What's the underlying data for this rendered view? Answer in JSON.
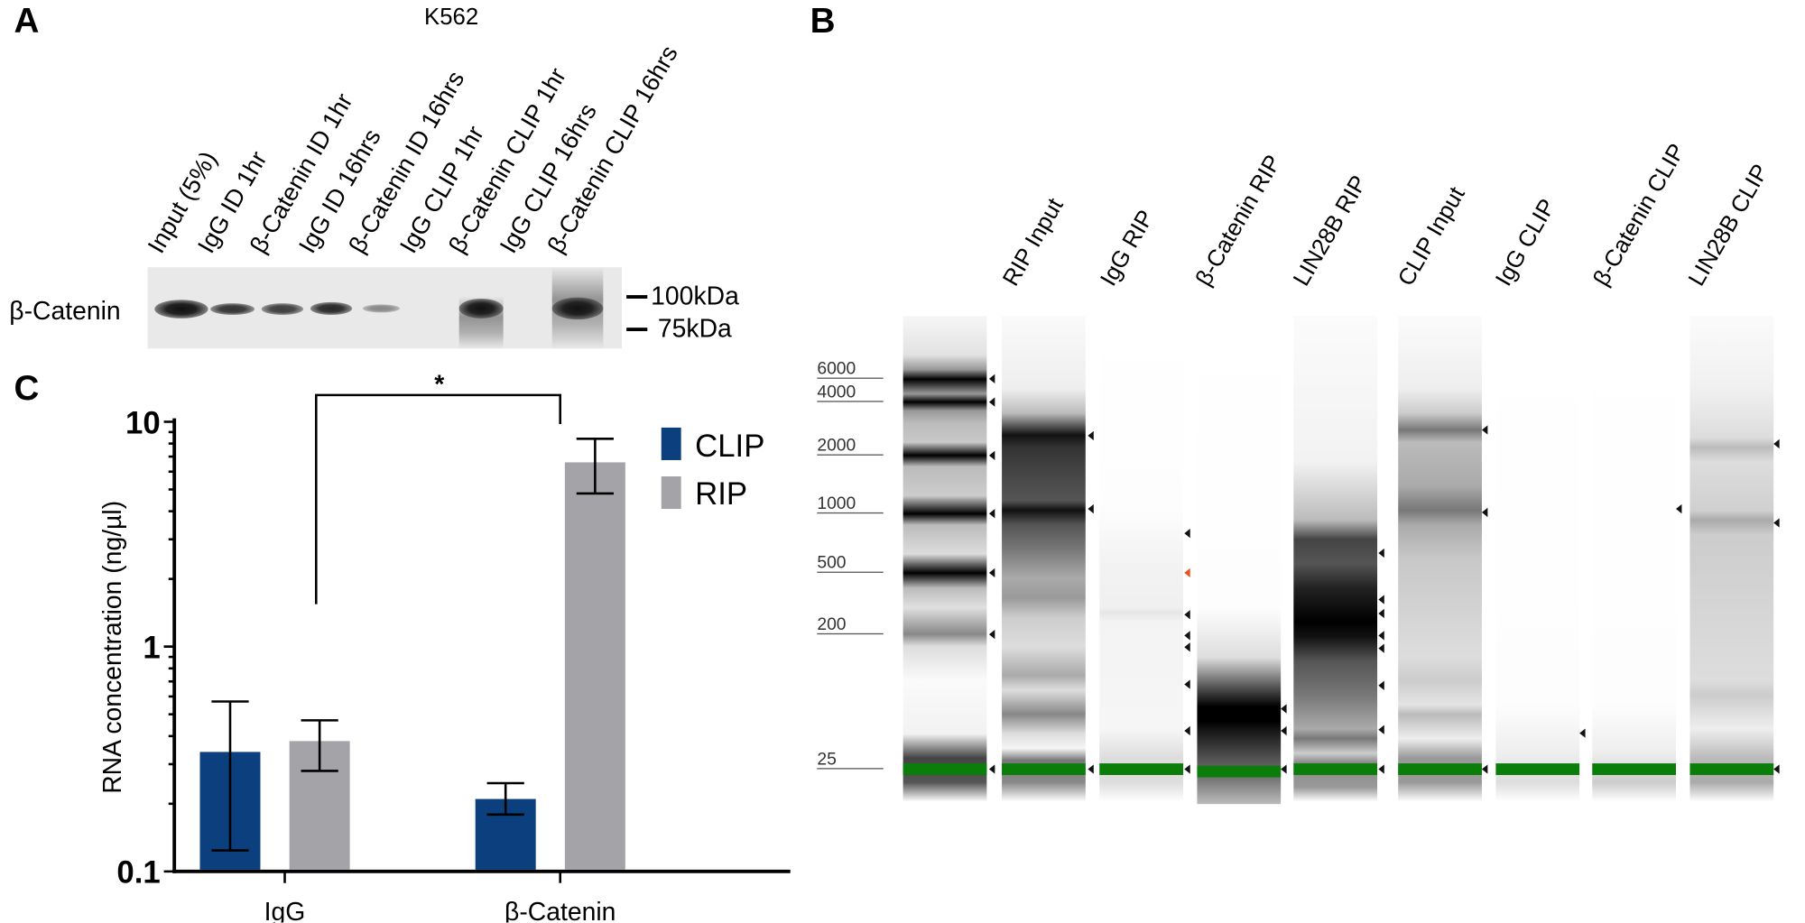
{
  "panels": {
    "a": "A",
    "b": "B",
    "c": "C"
  },
  "panel_a": {
    "cell_line": "K562",
    "lane_labels": [
      "Input (5%)",
      "IgG ID 1hr",
      "β-Catenin ID 1hr",
      "IgG ID 16hrs",
      "β-Catenin ID 16hrs",
      "IgG CLIP 1hr",
      "β-Catenin CLIP 1hr",
      "IgG CLIP 16hrs",
      "β-Catenin CLIP 16hrs"
    ],
    "row_label": "β-Catenin",
    "markers": [
      "100kDa",
      "75kDa"
    ]
  },
  "panel_b": {
    "lane_labels": [
      "RIP Input",
      "IgG RIP",
      "β-Catenin RIP",
      "LIN28B RIP",
      "CLIP Input",
      "IgG CLIP",
      "β-Catenin CLIP",
      "LIN28B CLIP"
    ],
    "ladder_labels": [
      "6000",
      "4000",
      "2000",
      "1000",
      "500",
      "200",
      "25"
    ]
  },
  "chart_data": {
    "type": "bar",
    "title": "",
    "xlabel": "",
    "ylabel": "RNA concentration (ng/µl)",
    "yscale": "log",
    "ylim": [
      0.1,
      10
    ],
    "yticks": [
      "0.1",
      "1",
      "10"
    ],
    "categories": [
      "IgG",
      "β-Catenin"
    ],
    "series": [
      {
        "name": "CLIP",
        "color": "#0b3f7e",
        "values": [
          0.34,
          0.21
        ],
        "err_low": [
          0.124,
          0.179
        ],
        "err_high": [
          0.57,
          0.247
        ]
      },
      {
        "name": "RIP",
        "color": "#a4a4a8",
        "values": [
          0.38,
          6.6
        ],
        "err_low": [
          0.28,
          4.8
        ],
        "err_high": [
          0.47,
          8.4
        ]
      }
    ],
    "legend": "right",
    "annotation": {
      "text": "*",
      "between": [
        "IgG",
        "β-Catenin RIP"
      ]
    }
  }
}
